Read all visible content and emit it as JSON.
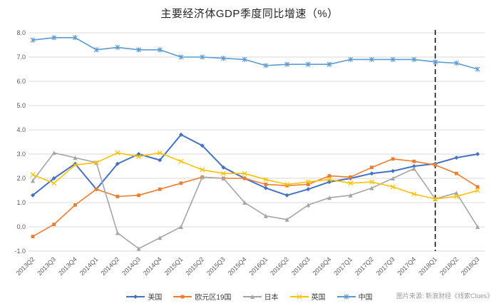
{
  "source": "图片来源: 新浪财经《线索Clues》",
  "chart_data": {
    "type": "line",
    "title": "主要经济体GDP季度同比增速（%）",
    "xlabel": "",
    "ylabel": "",
    "ylim": [
      -1.0,
      8.0
    ],
    "ytick_step": 1.0,
    "grid": true,
    "legend_position": "bottom",
    "categories": [
      "2013Q2",
      "2013Q3",
      "2013Q4",
      "2014Q1",
      "2014Q2",
      "2014Q3",
      "2014Q4",
      "2015Q1",
      "2015Q2",
      "2015Q3",
      "2015Q4",
      "2016Q1",
      "2016Q2",
      "2016Q3",
      "2016Q4",
      "2017Q1",
      "2017Q2",
      "2017Q3",
      "2017Q4",
      "2018Q1",
      "2018Q2",
      "2018Q3"
    ],
    "series": [
      {
        "id": "usa",
        "name": "美国",
        "color": "#4472C4",
        "marker": "diamond",
        "values": [
          1.3,
          2.0,
          2.6,
          1.55,
          2.6,
          3.0,
          2.75,
          3.8,
          3.35,
          2.45,
          2.0,
          1.6,
          1.3,
          1.55,
          1.85,
          2.0,
          2.2,
          2.3,
          2.5,
          2.6,
          2.85,
          3.0
        ]
      },
      {
        "id": "eurozone",
        "name": "欧元区19国",
        "color": "#ED7D31",
        "marker": "square",
        "values": [
          -0.4,
          0.1,
          0.9,
          1.55,
          1.25,
          1.3,
          1.55,
          1.8,
          2.05,
          2.0,
          2.0,
          1.75,
          1.7,
          1.75,
          2.1,
          2.05,
          2.45,
          2.8,
          2.7,
          2.55,
          2.2,
          1.65
        ]
      },
      {
        "id": "japan",
        "name": "日本",
        "color": "#A5A5A5",
        "marker": "triangle",
        "values": [
          1.9,
          3.05,
          2.85,
          2.65,
          -0.25,
          -0.9,
          -0.45,
          0.0,
          2.05,
          2.0,
          1.0,
          0.45,
          0.3,
          0.9,
          1.2,
          1.3,
          1.6,
          2.0,
          2.4,
          1.15,
          1.4,
          0.0
        ]
      },
      {
        "id": "uk",
        "name": "英国",
        "color": "#FFC000",
        "marker": "x",
        "values": [
          2.15,
          1.8,
          2.55,
          2.65,
          3.05,
          2.9,
          3.05,
          2.7,
          2.35,
          2.2,
          2.2,
          1.95,
          1.75,
          1.85,
          1.95,
          1.8,
          1.85,
          1.65,
          1.35,
          1.15,
          1.25,
          1.5
        ]
      },
      {
        "id": "china",
        "name": "中国",
        "color": "#5B9BD5",
        "marker": "asterisk",
        "values": [
          7.7,
          7.8,
          7.8,
          7.3,
          7.4,
          7.3,
          7.3,
          7.0,
          7.0,
          6.95,
          6.9,
          6.65,
          6.7,
          6.7,
          6.7,
          6.9,
          6.9,
          6.9,
          6.9,
          6.8,
          6.75,
          6.5
        ]
      }
    ],
    "annotations": [
      {
        "type": "vline",
        "at": "2018Q1",
        "style": "dashed",
        "color": "#000000"
      }
    ],
    "colors": {
      "gridline": "#D9D9D9",
      "axis_text": "#595959"
    }
  }
}
